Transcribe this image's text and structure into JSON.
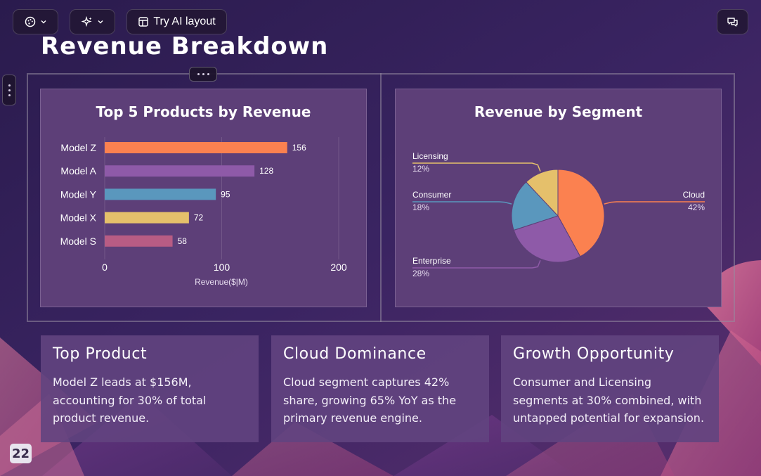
{
  "toolbar": {
    "theme_icon": "palette-icon",
    "ai_icon": "sparkle-icon",
    "ai_layout_label": "Try AI layout",
    "comments_icon": "comments-icon"
  },
  "slide": {
    "title": "Revenue Breakdown",
    "page_number": "22"
  },
  "bar_chart": {
    "title": "Top 5 Products by Revenue",
    "xlabel": "Revenue($|M)"
  },
  "pie_chart": {
    "title": "Revenue by Segment"
  },
  "cards": [
    {
      "title": "Top Product",
      "text": "Model Z leads at $156M, accounting for 30% of total product revenue."
    },
    {
      "title": "Cloud Dominance",
      "text": "Cloud segment captures 42% share, growing 65% YoY as the primary revenue engine."
    },
    {
      "title": "Growth Opportunity",
      "text": "Consumer and Licensing segments at 30% combined, with untapped potential for expansion."
    }
  ],
  "chart_data": [
    {
      "type": "bar",
      "orientation": "horizontal",
      "title": "Top 5 Products by Revenue",
      "categories": [
        "Model Z",
        "Model A",
        "Model Y",
        "Model X",
        "Model S"
      ],
      "values": [
        156,
        128,
        95,
        72,
        58
      ],
      "colors": [
        "#fb8150",
        "#8e5aa8",
        "#5a97bd",
        "#e5c06b",
        "#b85c84"
      ],
      "xlabel": "Revenue($|M)",
      "ylabel": "",
      "xlim": [
        0,
        200
      ],
      "xticks": [
        0,
        100,
        200
      ],
      "grid": true,
      "data_labels": true
    },
    {
      "type": "pie",
      "title": "Revenue by Segment",
      "slices": [
        {
          "label": "Cloud",
          "value": 42,
          "display": "42%",
          "color": "#fb8150"
        },
        {
          "label": "Enterprise",
          "value": 28,
          "display": "28%",
          "color": "#8e5aa8"
        },
        {
          "label": "Consumer",
          "value": 18,
          "display": "18%",
          "color": "#5a97bd"
        },
        {
          "label": "Licensing",
          "value": 12,
          "display": "12%",
          "color": "#e5c06b"
        }
      ]
    }
  ]
}
